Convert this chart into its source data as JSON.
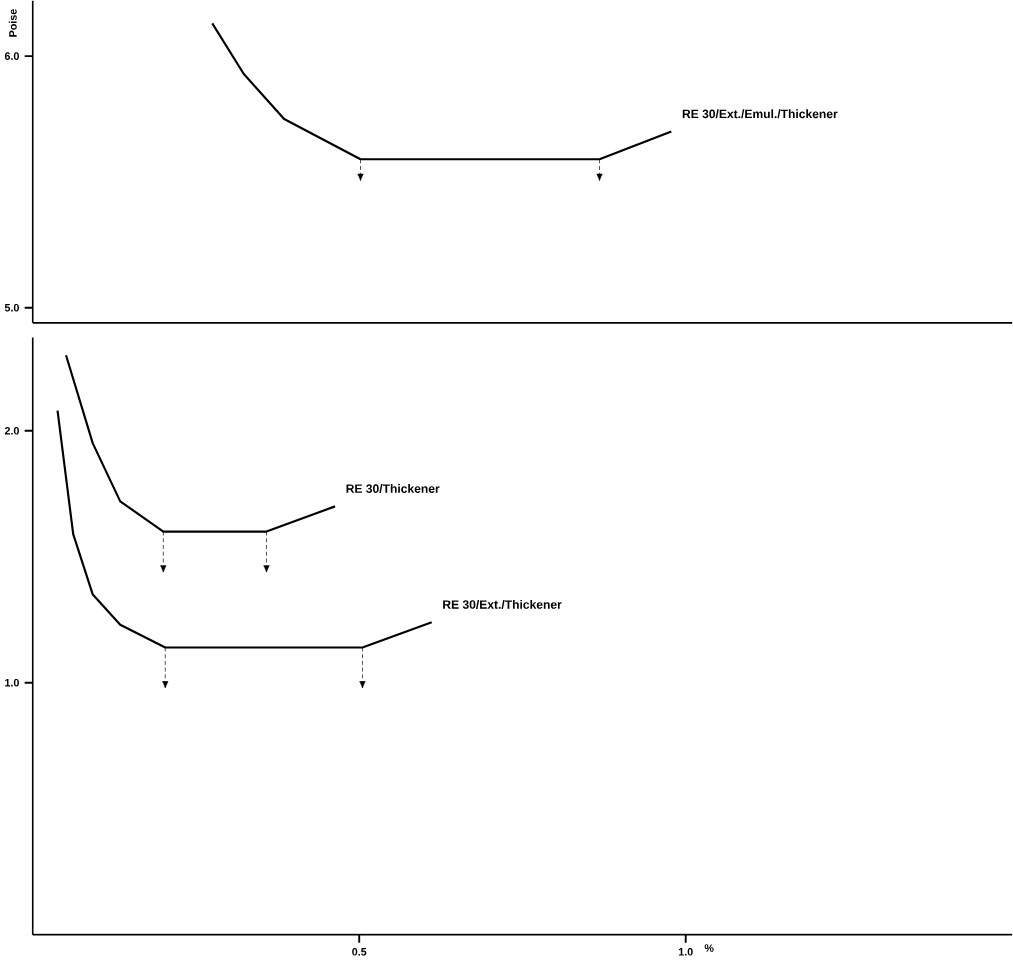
{
  "chart_data": [
    {
      "type": "line",
      "ylabel": "Poise",
      "xlim": [
        0,
        1.5
      ],
      "ylim": [
        4.94,
        6.22
      ],
      "yticks": [
        {
          "value": 5,
          "label": "5.0"
        },
        {
          "value": 6,
          "label": "6.0"
        }
      ],
      "tick_labels": "y",
      "color": "#000000",
      "series": [
        {
          "name": "RE 30/Ext./Emul./Thickener",
          "x": [
            0.275,
            0.323,
            0.385,
            0.502,
            0.868,
            0.978
          ],
          "values": [
            6.13,
            5.93,
            5.75,
            5.59,
            5.59,
            5.7
          ]
        }
      ]
    },
    {
      "type": "line",
      "xlabel": "%",
      "xlim": [
        0,
        1.5
      ],
      "ylim": [
        0,
        2.37
      ],
      "xticks": [
        0.5,
        {
          "value": 1,
          "label": "1.0"
        }
      ],
      "yticks": [
        {
          "value": 1,
          "label": "1.0"
        },
        {
          "value": 2,
          "label": "2.0"
        }
      ],
      "color": "#000000",
      "series": [
        {
          "name": "RE 30/Thickener",
          "x": [
            0.051,
            0.092,
            0.134,
            0.2,
            0.358,
            0.463
          ],
          "values": [
            2.3,
            1.95,
            1.72,
            1.6,
            1.6,
            1.7
          ]
        },
        {
          "name": "RE 30/Ext./Thickener",
          "x": [
            0.038,
            0.062,
            0.092,
            0.134,
            0.203,
            0.505,
            0.611
          ],
          "values": [
            2.08,
            1.59,
            1.35,
            1.23,
            1.14,
            1.14,
            1.24
          ]
        }
      ]
    }
  ]
}
